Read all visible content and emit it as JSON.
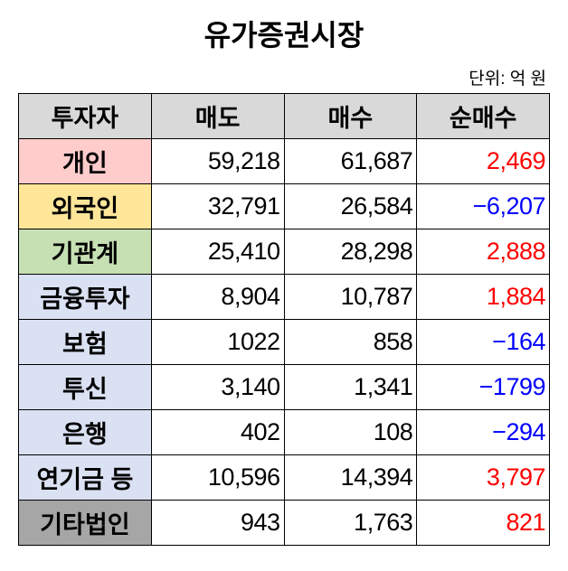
{
  "title": "유가증권시장",
  "unit": "단위: 억 원",
  "colors": {
    "positive": "#ff0000",
    "negative": "#0000ff",
    "header_bg": "#d9d9d9"
  },
  "headers": [
    "투자자",
    "매도",
    "매수",
    "순매수"
  ],
  "rows": [
    {
      "investor": "개인",
      "sell": "59,218",
      "buy": "61,687",
      "net": "2,469",
      "sign": "pos",
      "bg": "#ffcccc"
    },
    {
      "investor": "외국인",
      "sell": "32,791",
      "buy": "26,584",
      "net": "−6,207",
      "sign": "neg",
      "bg": "#ffe699"
    },
    {
      "investor": "기관계",
      "sell": "25,410",
      "buy": "28,298",
      "net": "2,888",
      "sign": "pos",
      "bg": "#c6e0b4"
    },
    {
      "investor": "금융투자",
      "sell": "8,904",
      "buy": "10,787",
      "net": "1,884",
      "sign": "pos",
      "bg": "#dae1f2"
    },
    {
      "investor": "보험",
      "sell": "1022",
      "buy": "858",
      "net": "−164",
      "sign": "neg",
      "bg": "#dae1f2"
    },
    {
      "investor": "투신",
      "sell": "3,140",
      "buy": "1,341",
      "net": "−1799",
      "sign": "neg",
      "bg": "#dae1f2"
    },
    {
      "investor": "은행",
      "sell": "402",
      "buy": "108",
      "net": "−294",
      "sign": "neg",
      "bg": "#dae1f2"
    },
    {
      "investor": "연기금 등",
      "sell": "10,596",
      "buy": "14,394",
      "net": "3,797",
      "sign": "pos",
      "bg": "#dae1f2"
    },
    {
      "investor": "기타법인",
      "sell": "943",
      "buy": "1,763",
      "net": "821",
      "sign": "pos",
      "bg": "#a6a6a6"
    }
  ]
}
